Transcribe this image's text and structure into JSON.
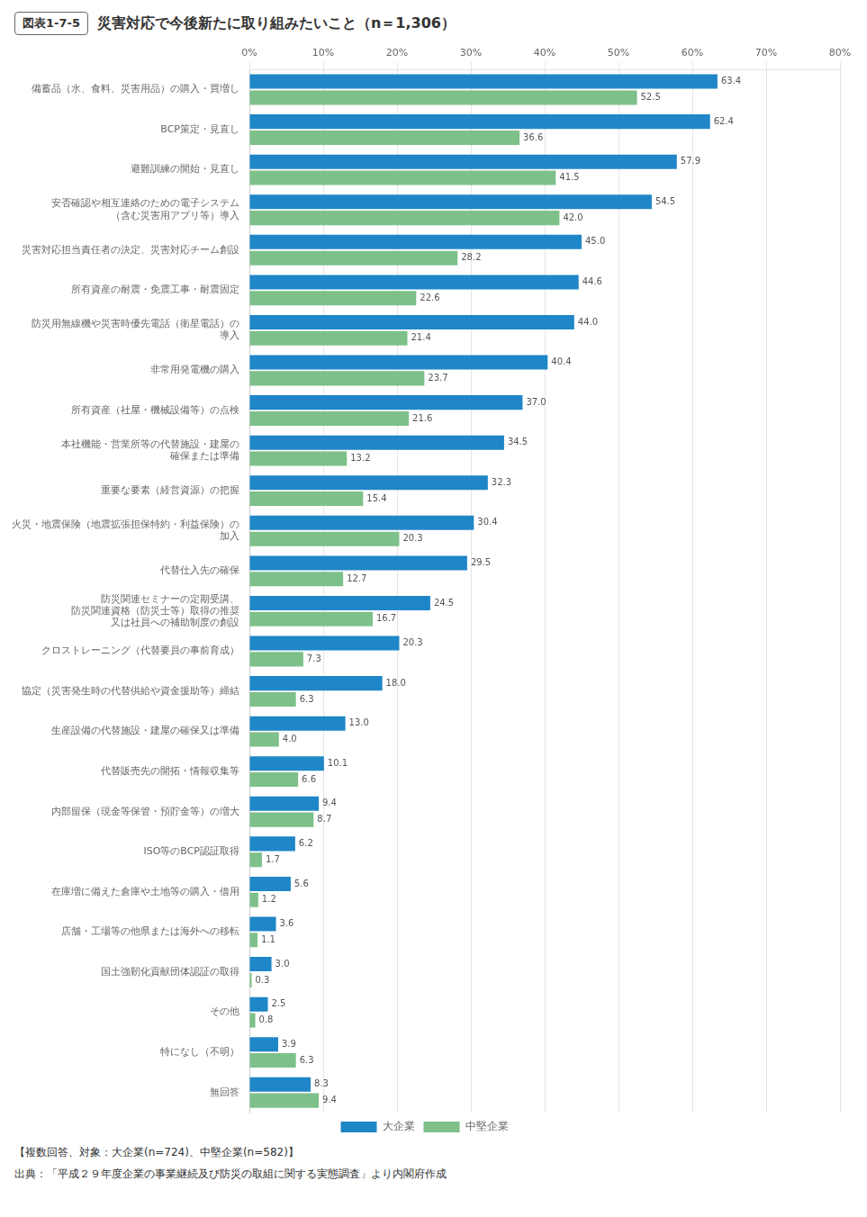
{
  "chart_data": {
    "type": "bar",
    "orientation": "horizontal",
    "title": "災害対応で今後新たに取り組みたいこと（n＝1,306）",
    "annotations": [
      "図表1-7-5",
      "【複数回答、対象：大企業(n=724)、中堅企業(n=582)】",
      "出典：「平成２９年度企業の事業継続及び防災の取組に関する実態調査」より内閣府作成"
    ],
    "categories": [
      "備蓄品（水、食料、災害用品）の購入・買増し",
      "BCP策定・見直し",
      "避難訓練の開始・見直し",
      "安否確認や相互連絡のための電子システム\n（含む災害用アプリ等）導入",
      "災害対応担当責任者の決定、災害対応チーム創設",
      "所有資産の耐震・免震工事・耐震固定",
      "防災用無線機や災害時優先電話（衛星電話）の\n導入",
      "非常用発電機の購入",
      "所有資産（社屋・機械設備等）の点検",
      "本社機能・営業所等の代替施設・建屋の\n確保または準備",
      "重要な要素（経営資源）の把握",
      "火災・地震保険（地震拡張担保特約・利益保険）の\n加入",
      "代替仕入先の確保",
      "防災関連セミナーの定期受講、\n防災関連資格（防災士等）取得の推奨\n又は社員への補助制度の創設",
      "クロストレーニング（代替要員の事前育成）",
      "協定（災害発生時の代替供給や資金援助等）締結",
      "生産設備の代替施設・建屋の確保又は準備",
      "代替販売先の開拓・情報収集等",
      "内部留保（現金等保管・預貯金等）の増大",
      "ISO等のBCP認証取得",
      "在庫増に備えた倉庫や土地等の購入・借用",
      "店舗・工場等の他県または海外への移転",
      "国土強靭化貢献団体認証の取得",
      "その他",
      "特になし（不明）",
      "無回答"
    ],
    "series": [
      {
        "name": "大企業",
        "color": "#1F86C8",
        "values": [
          63.4,
          62.4,
          57.9,
          54.5,
          45.0,
          44.6,
          44.0,
          40.4,
          37.0,
          34.5,
          32.3,
          30.4,
          29.5,
          24.5,
          20.3,
          18.0,
          13.0,
          10.1,
          9.4,
          6.2,
          5.6,
          3.6,
          3.0,
          2.5,
          3.9,
          8.3
        ],
        "value_labels": [
          "63.4",
          "62.4",
          "57.9",
          "54.5",
          "45.0",
          "44.6",
          "44.0",
          "40.4",
          "37.0",
          "34.5",
          "32.3",
          "30.4",
          "29.5",
          "24.5",
          "20.3",
          "18.0",
          "13.0",
          "10.1",
          "9.4",
          "6.2",
          "5.6",
          "3.6",
          "3.0",
          "2.5",
          "3.9",
          "8.3"
        ]
      },
      {
        "name": "中堅企業",
        "color": "#7DC08A",
        "values": [
          52.5,
          36.6,
          41.5,
          42.0,
          28.2,
          22.6,
          21.4,
          23.7,
          21.6,
          13.2,
          15.4,
          20.3,
          12.7,
          16.7,
          7.3,
          6.3,
          4.0,
          6.6,
          8.7,
          1.7,
          1.2,
          1.1,
          0.3,
          0.8,
          6.3,
          9.4
        ],
        "value_labels": [
          "52.5",
          "36.6",
          "41.5",
          "42.0",
          "28.2",
          "22.6",
          "21.4",
          "23.7",
          "21.6",
          "13.2",
          "15.4",
          "20.3",
          "12.7",
          "16.7",
          "7.3",
          "6.3",
          "4.0",
          "6.6",
          "8.7",
          "1.7",
          "1.2",
          "1.1",
          "0.3",
          "0.8",
          "6.3",
          "9.4"
        ]
      }
    ],
    "xlim": [
      0,
      80
    ],
    "xticks": [
      {
        "value": 0,
        "label": "0%"
      },
      {
        "value": 10,
        "label": "10%"
      },
      {
        "value": 20,
        "label": "20%"
      },
      {
        "value": 30,
        "label": "30%"
      },
      {
        "value": 40,
        "label": "40%"
      },
      {
        "value": 50,
        "label": "50%"
      },
      {
        "value": 60,
        "label": "60%"
      },
      {
        "value": 70,
        "label": "70%"
      },
      {
        "value": 80,
        "label": "80%"
      }
    ],
    "grid": true,
    "legend": "bottom",
    "data_labels": true
  }
}
